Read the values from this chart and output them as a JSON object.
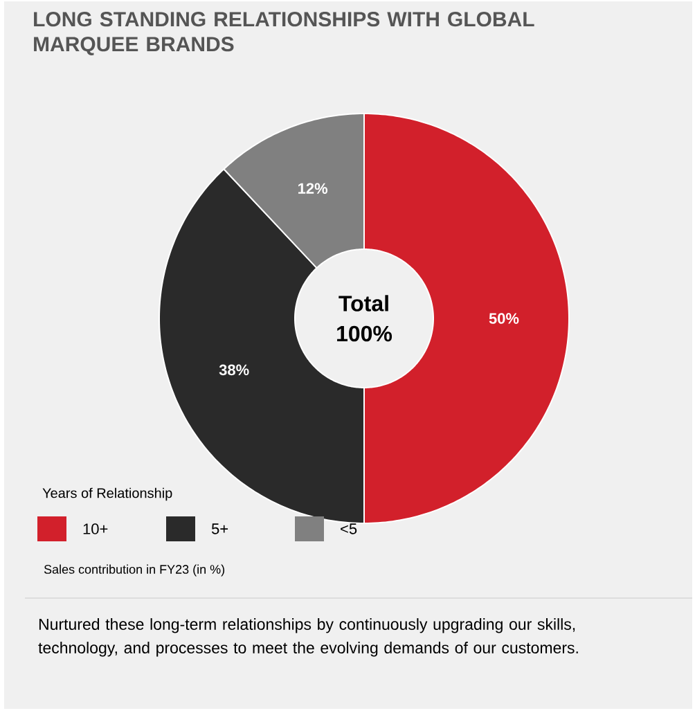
{
  "chart_data": {
    "type": "donut",
    "title": "LONG STANDING RELATIONSHIPS WITH GLOBAL MARQUEE BRANDS",
    "categories": [
      "10+",
      "5+",
      "<5"
    ],
    "values": [
      50,
      38,
      12
    ],
    "value_labels": [
      "50%",
      "38%",
      "12%"
    ],
    "colors": [
      "#d2202b",
      "#2a2a2a",
      "#808080"
    ],
    "legend_title": "Years of Relationship",
    "legend": "bottom",
    "annotations": [
      "Total",
      "100%",
      "Sales contribution in FY23 (in %)",
      "Nurtured these long-term relationships by continuously upgrading our skills, technology, and processes to meet the evolving demands of our customers."
    ]
  }
}
